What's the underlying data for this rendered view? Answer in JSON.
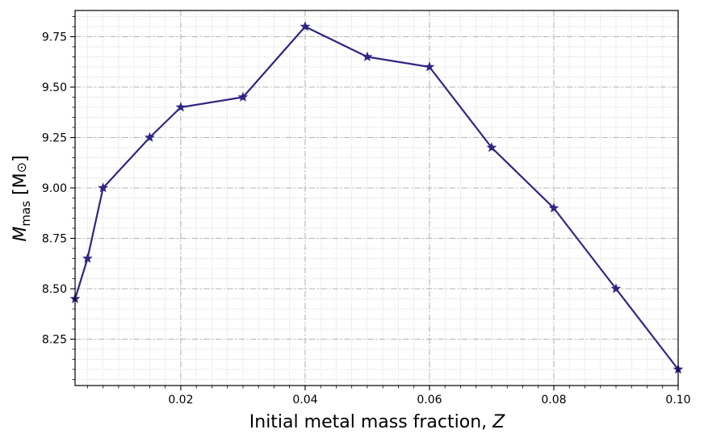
{
  "chart_data": {
    "type": "line",
    "xlabel": "Initial metal mass fraction, ",
    "xlabel_var": "Z",
    "ylabel_sym": "M",
    "ylabel_sub": "mas",
    "ylabel_unit": " [M",
    "ylabel_unit_sym": "⊙",
    "ylabel_close": "]",
    "xlim": [
      0.003,
      0.1
    ],
    "ylim": [
      8.02,
      9.88
    ],
    "xticks": [
      0.02,
      0.04,
      0.06,
      0.08,
      0.1
    ],
    "xtick_labels": [
      "0.02",
      "0.04",
      "0.06",
      "0.08",
      "0.10"
    ],
    "yticks": [
      8.25,
      8.5,
      8.75,
      9.0,
      9.25,
      9.5,
      9.75
    ],
    "ytick_labels": [
      "8.25",
      "8.50",
      "8.75",
      "9.00",
      "9.25",
      "9.50",
      "9.75"
    ],
    "grid": true,
    "series": [
      {
        "marker": "star",
        "color": "#2e2683",
        "x": [
          0.003,
          0.005,
          0.0075,
          0.015,
          0.02,
          0.03,
          0.04,
          0.05,
          0.06,
          0.07,
          0.08,
          0.09,
          0.1
        ],
        "y": [
          8.45,
          8.65,
          9.0,
          9.25,
          9.4,
          9.45,
          9.8,
          9.65,
          9.6,
          9.2,
          8.9,
          8.5,
          8.1
        ]
      }
    ]
  }
}
